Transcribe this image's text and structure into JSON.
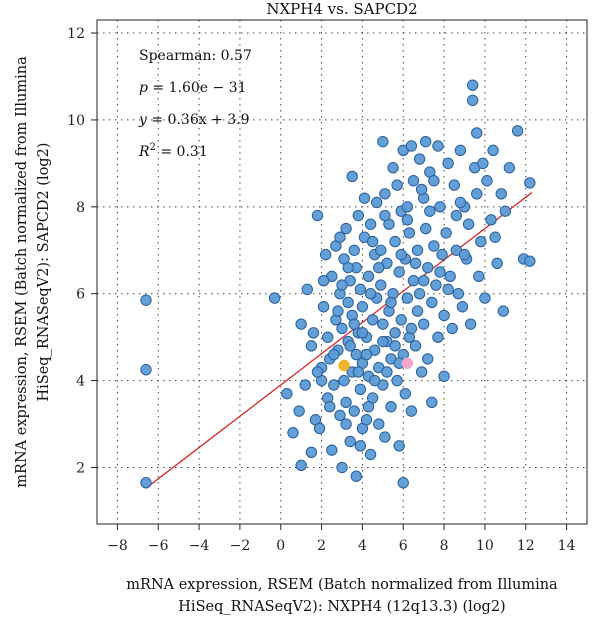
{
  "chart_data": {
    "type": "scatter",
    "title": "NXPH4 vs. SAPCD2",
    "xlabel": [
      "mRNA expression, RSEM (Batch normalized from Illumina",
      "HiSeq_RNASeqV2): NXPH4 (12q13.3) (log2)"
    ],
    "ylabel": [
      "mRNA expression, RSEM (Batch normalized from Illumina",
      "HiSeq_RNASeqV2): SAPCD2 (log2)"
    ],
    "xlim": [
      -9,
      15
    ],
    "ylim": [
      0.7,
      12.3
    ],
    "xticks": [
      -8,
      -6,
      -4,
      -2,
      0,
      2,
      4,
      6,
      8,
      10,
      12,
      14
    ],
    "yticks": [
      2,
      4,
      6,
      8,
      10,
      12
    ],
    "grid": true,
    "stats": {
      "spearman_label": "Spearman: 0.57",
      "p_label": "= 1.60e − 31",
      "y_label": "= 0.36x + 3.9",
      "r2_label": "= 0.31"
    },
    "regression": {
      "slope": 0.36,
      "intercept": 3.9,
      "x_range": [
        -6.6,
        12.3
      ]
    },
    "colors": {
      "point": "#5b9bd5",
      "point_edge": "#2b5f99",
      "line": "#d62728",
      "highlight_1": "#f0b429",
      "highlight_2": "#f4a6c8"
    },
    "highlight_points": [
      {
        "x": 3.1,
        "y": 4.35,
        "color": "#f0b429"
      },
      {
        "x": 6.2,
        "y": 4.4,
        "color": "#f4a6c8"
      }
    ],
    "points": [
      [
        -6.6,
        5.85
      ],
      [
        -6.6,
        4.25
      ],
      [
        -6.6,
        1.65
      ],
      [
        -0.3,
        5.9
      ],
      [
        0.3,
        3.7
      ],
      [
        0.9,
        3.3
      ],
      [
        0.6,
        2.8
      ],
      [
        1.0,
        2.05
      ],
      [
        1.5,
        2.35
      ],
      [
        1.2,
        3.9
      ],
      [
        1.0,
        5.3
      ],
      [
        1.3,
        6.1
      ],
      [
        1.5,
        4.8
      ],
      [
        1.6,
        5.1
      ],
      [
        1.7,
        3.1
      ],
      [
        1.8,
        7.8
      ],
      [
        1.9,
        2.9
      ],
      [
        2.0,
        4.3
      ],
      [
        2.1,
        5.7
      ],
      [
        2.2,
        6.9
      ],
      [
        2.3,
        3.6
      ],
      [
        2.3,
        5.0
      ],
      [
        2.4,
        4.5
      ],
      [
        2.5,
        2.4
      ],
      [
        2.5,
        6.4
      ],
      [
        2.6,
        3.9
      ],
      [
        2.7,
        5.4
      ],
      [
        2.7,
        7.1
      ],
      [
        2.8,
        4.7
      ],
      [
        2.9,
        3.2
      ],
      [
        2.9,
        6.0
      ],
      [
        3.0,
        2.0
      ],
      [
        3.0,
        5.2
      ],
      [
        3.1,
        4.0
      ],
      [
        3.1,
        6.8
      ],
      [
        3.2,
        3.5
      ],
      [
        3.2,
        7.5
      ],
      [
        3.3,
        4.9
      ],
      [
        3.3,
        5.8
      ],
      [
        3.4,
        2.6
      ],
      [
        3.4,
        6.3
      ],
      [
        3.5,
        4.2
      ],
      [
        3.5,
        5.5
      ],
      [
        3.5,
        8.7
      ],
      [
        3.6,
        3.3
      ],
      [
        3.6,
        7.0
      ],
      [
        3.7,
        1.8
      ],
      [
        3.7,
        4.6
      ],
      [
        3.7,
        6.6
      ],
      [
        3.8,
        5.1
      ],
      [
        3.8,
        7.8
      ],
      [
        3.9,
        3.8
      ],
      [
        3.9,
        6.1
      ],
      [
        4.0,
        2.9
      ],
      [
        4.0,
        4.4
      ],
      [
        4.0,
        5.7
      ],
      [
        4.1,
        7.3
      ],
      [
        4.1,
        8.2
      ],
      [
        4.2,
        3.1
      ],
      [
        4.2,
        5.0
      ],
      [
        4.3,
        6.4
      ],
      [
        4.3,
        4.1
      ],
      [
        4.4,
        2.3
      ],
      [
        4.4,
        7.6
      ],
      [
        4.5,
        5.4
      ],
      [
        4.5,
        3.6
      ],
      [
        4.6,
        6.9
      ],
      [
        4.6,
        4.7
      ],
      [
        4.7,
        8.1
      ],
      [
        4.7,
        5.9
      ],
      [
        4.8,
        3.0
      ],
      [
        4.8,
        4.3
      ],
      [
        4.9,
        7.0
      ],
      [
        4.9,
        6.2
      ],
      [
        5.0,
        9.5
      ],
      [
        5.0,
        5.3
      ],
      [
        5.0,
        3.9
      ],
      [
        5.1,
        8.3
      ],
      [
        5.1,
        2.7
      ],
      [
        5.2,
        6.7
      ],
      [
        5.2,
        4.9
      ],
      [
        5.3,
        7.6
      ],
      [
        5.3,
        5.6
      ],
      [
        5.4,
        4.5
      ],
      [
        5.4,
        3.4
      ],
      [
        5.5,
        8.9
      ],
      [
        5.5,
        6.0
      ],
      [
        5.6,
        7.2
      ],
      [
        5.6,
        5.1
      ],
      [
        5.7,
        4.0
      ],
      [
        5.7,
        8.5
      ],
      [
        5.8,
        6.5
      ],
      [
        5.8,
        2.5
      ],
      [
        5.9,
        7.9
      ],
      [
        5.9,
        5.4
      ],
      [
        6.0,
        1.65
      ],
      [
        6.0,
        9.3
      ],
      [
        6.0,
        4.6
      ],
      [
        6.1,
        6.8
      ],
      [
        6.1,
        3.7
      ],
      [
        6.2,
        8.0
      ],
      [
        6.2,
        5.9
      ],
      [
        6.3,
        7.4
      ],
      [
        6.3,
        5.0
      ],
      [
        6.4,
        9.4
      ],
      [
        6.4,
        3.3
      ],
      [
        6.5,
        6.3
      ],
      [
        6.5,
        8.6
      ],
      [
        6.6,
        4.8
      ],
      [
        6.7,
        7.0
      ],
      [
        6.7,
        5.6
      ],
      [
        6.8,
        9.1
      ],
      [
        6.8,
        6.0
      ],
      [
        6.9,
        4.2
      ],
      [
        7.0,
        8.2
      ],
      [
        7.0,
        5.3
      ],
      [
        7.1,
        7.5
      ],
      [
        7.1,
        9.5
      ],
      [
        7.2,
        6.6
      ],
      [
        7.2,
        4.5
      ],
      [
        7.3,
        8.8
      ],
      [
        7.4,
        5.8
      ],
      [
        7.4,
        3.5
      ],
      [
        7.5,
        7.1
      ],
      [
        7.6,
        6.2
      ],
      [
        7.7,
        9.4
      ],
      [
        7.7,
        5.0
      ],
      [
        7.8,
        8.0
      ],
      [
        7.9,
        6.9
      ],
      [
        8.0,
        5.5
      ],
      [
        8.0,
        4.1
      ],
      [
        8.1,
        7.4
      ],
      [
        8.2,
        9.0
      ],
      [
        8.3,
        6.4
      ],
      [
        8.4,
        5.2
      ],
      [
        8.5,
        8.5
      ],
      [
        8.6,
        7.0
      ],
      [
        8.7,
        6.0
      ],
      [
        8.8,
        9.3
      ],
      [
        8.9,
        5.7
      ],
      [
        9.0,
        8.0
      ],
      [
        9.1,
        6.8
      ],
      [
        9.2,
        7.6
      ],
      [
        9.3,
        5.3
      ],
      [
        9.4,
        10.8
      ],
      [
        9.4,
        10.45
      ],
      [
        9.5,
        8.9
      ],
      [
        9.6,
        9.7
      ],
      [
        9.7,
        6.4
      ],
      [
        9.8,
        7.2
      ],
      [
        9.9,
        9.0
      ],
      [
        10.0,
        5.9
      ],
      [
        10.1,
        8.6
      ],
      [
        10.3,
        7.7
      ],
      [
        10.4,
        9.3
      ],
      [
        10.6,
        6.7
      ],
      [
        10.8,
        8.3
      ],
      [
        10.9,
        5.6
      ],
      [
        11.0,
        7.9
      ],
      [
        11.6,
        9.75
      ],
      [
        11.9,
        6.8
      ],
      [
        12.2,
        8.55
      ],
      [
        12.2,
        6.75
      ],
      [
        11.2,
        8.9
      ],
      [
        2.0,
        4.0
      ],
      [
        2.6,
        4.6
      ],
      [
        3.4,
        4.8
      ],
      [
        3.8,
        4.2
      ],
      [
        4.2,
        4.6
      ],
      [
        4.6,
        4.0
      ],
      [
        5.2,
        4.2
      ],
      [
        5.6,
        4.8
      ],
      [
        2.8,
        5.6
      ],
      [
        3.0,
        6.2
      ],
      [
        4.4,
        6.0
      ],
      [
        4.8,
        6.6
      ],
      [
        3.6,
        5.3
      ],
      [
        4.0,
        5.1
      ],
      [
        5.4,
        5.8
      ],
      [
        6.6,
        6.7
      ],
      [
        7.8,
        6.5
      ],
      [
        8.6,
        7.8
      ],
      [
        7.3,
        7.9
      ],
      [
        6.9,
        8.4
      ],
      [
        5.9,
        6.9
      ],
      [
        3.2,
        3.0
      ],
      [
        2.4,
        3.4
      ],
      [
        1.8,
        4.2
      ],
      [
        3.9,
        2.5
      ],
      [
        4.3,
        3.4
      ],
      [
        5.0,
        4.9
      ],
      [
        5.8,
        4.4
      ],
      [
        6.4,
        5.2
      ],
      [
        7.0,
        6.3
      ],
      [
        8.2,
        6.1
      ],
      [
        9.0,
        6.9
      ],
      [
        8.8,
        8.1
      ],
      [
        4.5,
        7.2
      ],
      [
        3.3,
        6.6
      ],
      [
        2.1,
        6.3
      ],
      [
        2.9,
        7.3
      ],
      [
        6.2,
        7.7
      ],
      [
        7.5,
        8.6
      ],
      [
        9.6,
        8.3
      ],
      [
        10.5,
        7.3
      ],
      [
        5.1,
        7.8
      ]
    ]
  }
}
